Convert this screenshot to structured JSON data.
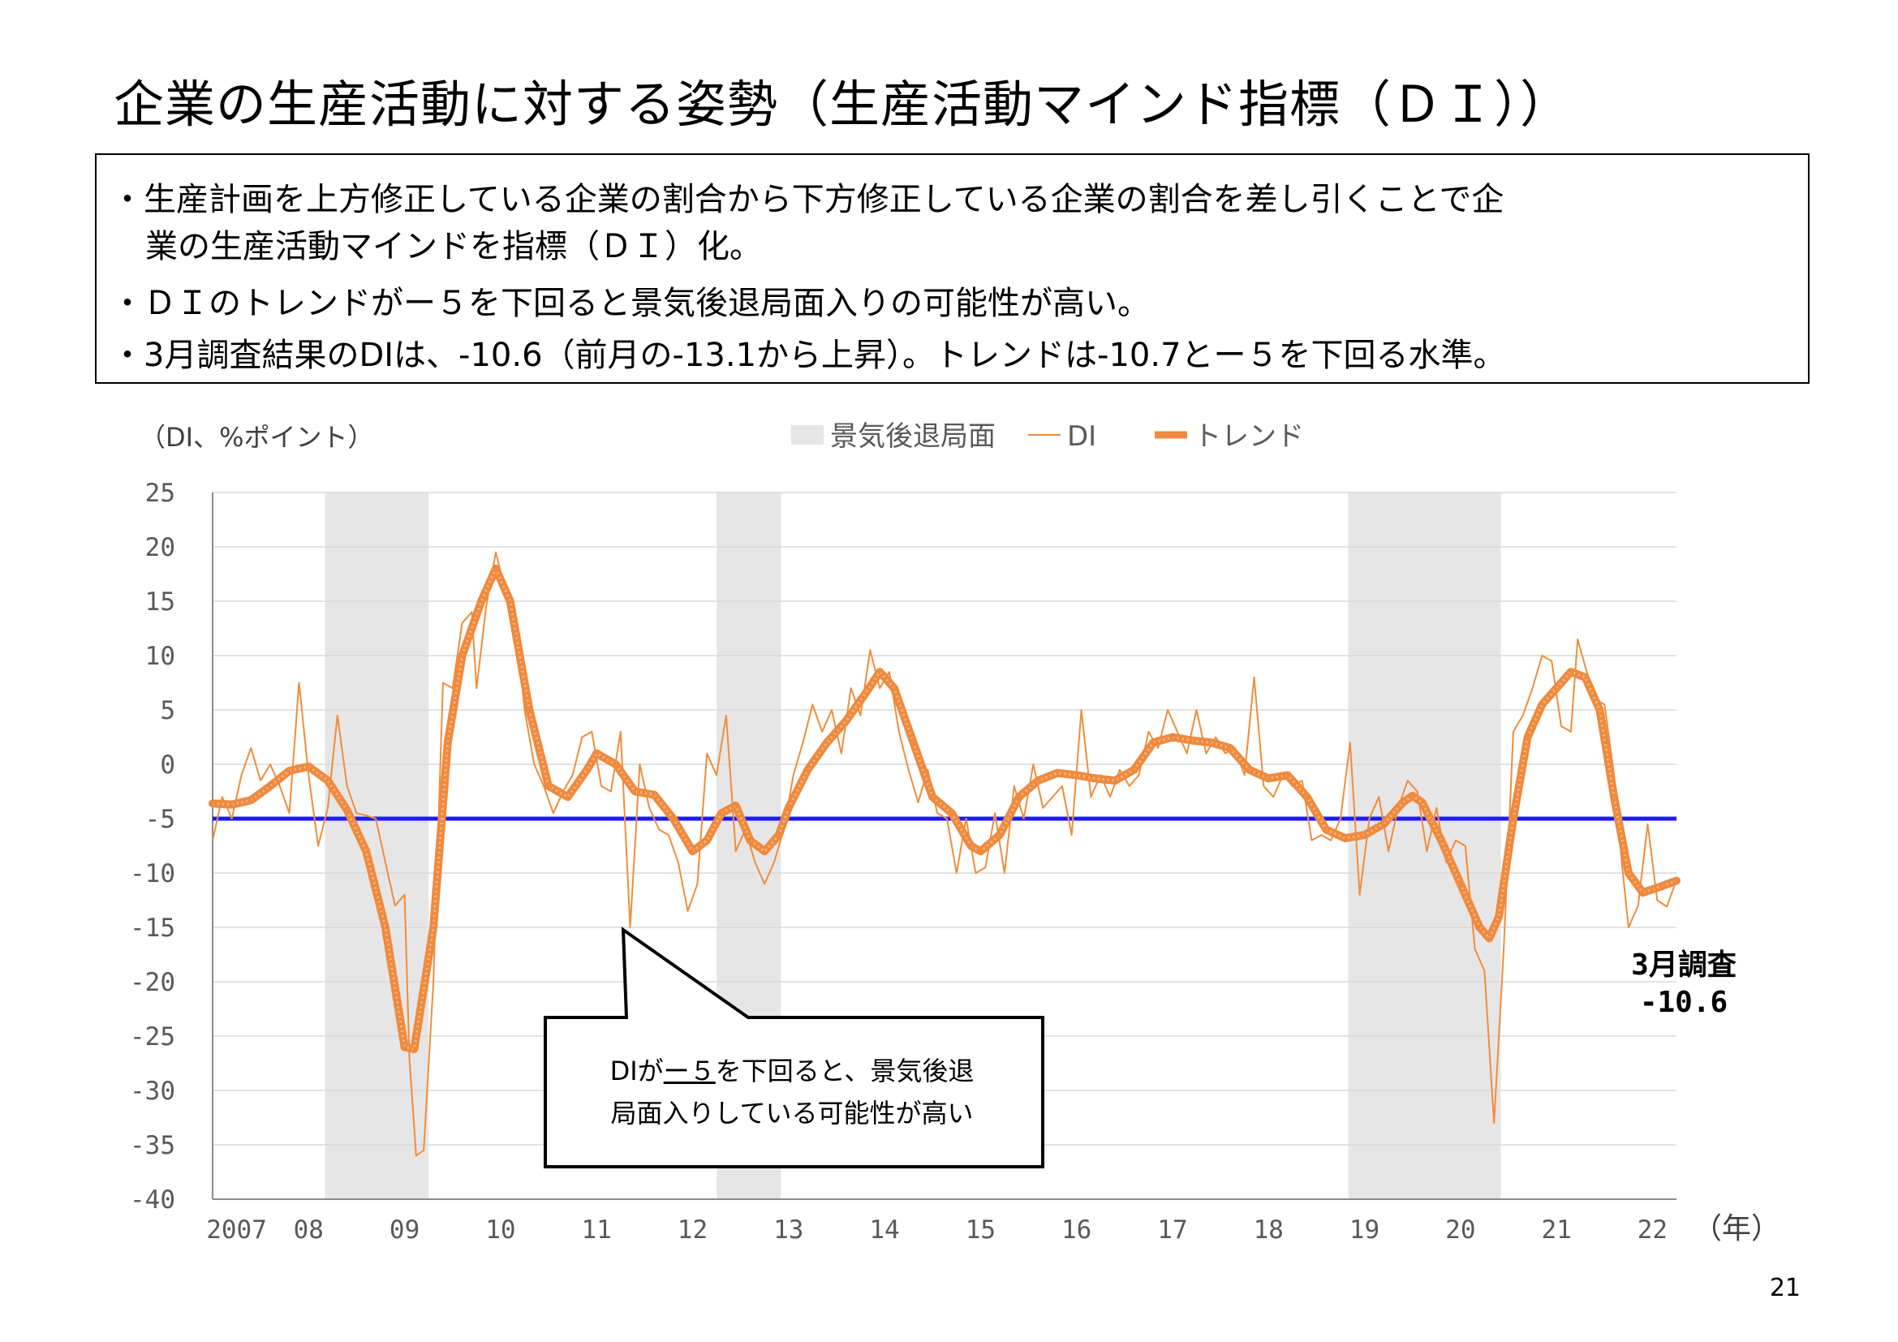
{
  "title": "企業の生産活動に対する姿勢（生産活動マインド指標（ＤＩ））",
  "description": {
    "bullets": [
      "・生産計画を上方修正している企業の割合から下方修正している企業の割合を差し引くことで企",
      "業の生産活動マインドを指標（ＤＩ）化。",
      "・ＤＩのトレンドがー５を下回ると景気後退局面入りの可能性が高い。",
      "・3月調査結果のDIは、-10.6（前月の-13.1から上昇）。トレンドは-10.7とー５を下回る水準。"
    ]
  },
  "callout": {
    "prefix": "DIが",
    "emph": "ー５",
    "suffix": "を下回ると、景気後退",
    "line2": "局面入りしている可能性が高い"
  },
  "annotation": {
    "line1": "3月調査",
    "line2": "-10.6"
  },
  "page_number": "21",
  "chart_data": {
    "type": "line",
    "ylabel": "（DI、%ポイント）",
    "xlabel": "（年）",
    "ylim": [
      -40,
      25
    ],
    "yticks": [
      25,
      20,
      15,
      10,
      5,
      0,
      -5,
      -10,
      -15,
      -20,
      -25,
      -30,
      -35,
      -40
    ],
    "xlim": [
      2007.0,
      2022.25
    ],
    "xticks": [
      {
        "label": "2007",
        "x": 2007.25
      },
      {
        "label": "08",
        "x": 2008.0
      },
      {
        "label": "09",
        "x": 2009.0
      },
      {
        "label": "10",
        "x": 2010.0
      },
      {
        "label": "11",
        "x": 2011.0
      },
      {
        "label": "12",
        "x": 2012.0
      },
      {
        "label": "13",
        "x": 2013.0
      },
      {
        "label": "14",
        "x": 2014.0
      },
      {
        "label": "15",
        "x": 2015.0
      },
      {
        "label": "16",
        "x": 2016.0
      },
      {
        "label": "17",
        "x": 2017.0
      },
      {
        "label": "18",
        "x": 2018.0
      },
      {
        "label": "19",
        "x": 2019.0
      },
      {
        "label": "20",
        "x": 2020.0
      },
      {
        "label": "21",
        "x": 2021.0
      },
      {
        "label": "22",
        "x": 2022.0
      }
    ],
    "grid": true,
    "legend": [
      {
        "name": "景気後退局面",
        "type": "band",
        "color": "#e6e6e6"
      },
      {
        "name": "DI",
        "type": "thin",
        "color": "#f28c3a"
      },
      {
        "name": "トレンド",
        "type": "thick",
        "color": "#ee8a3e"
      }
    ],
    "legend_position": "top",
    "recessions": [
      [
        2008.17,
        2009.25
      ],
      [
        2012.25,
        2012.92
      ],
      [
        2018.83,
        2020.42
      ]
    ],
    "threshold": {
      "value": -5,
      "color": "#1a1aff"
    },
    "colors": {
      "di": "#f28c3a",
      "trend": "#ee8a3e",
      "trend_highlight": "#f7b98a",
      "recession": "#e6e6e6",
      "threshold": "#1a1aff",
      "grid": "#d9d9d9"
    },
    "series": [
      {
        "name": "トレンド",
        "points": [
          [
            2007.0,
            -3.6
          ],
          [
            2007.2,
            -3.7
          ],
          [
            2007.4,
            -3.3
          ],
          [
            2007.6,
            -2.0
          ],
          [
            2007.8,
            -0.6
          ],
          [
            2008.0,
            -0.2
          ],
          [
            2008.2,
            -1.5
          ],
          [
            2008.4,
            -4.2
          ],
          [
            2008.6,
            -8.0
          ],
          [
            2008.8,
            -15.0
          ],
          [
            2009.0,
            -26.0
          ],
          [
            2009.1,
            -26.2
          ],
          [
            2009.3,
            -15.0
          ],
          [
            2009.45,
            2.0
          ],
          [
            2009.6,
            10.0
          ],
          [
            2009.8,
            15.0
          ],
          [
            2009.95,
            18.0
          ],
          [
            2010.1,
            15.0
          ],
          [
            2010.3,
            5.0
          ],
          [
            2010.5,
            -2.0
          ],
          [
            2010.7,
            -3.0
          ],
          [
            2010.9,
            -0.5
          ],
          [
            2011.0,
            1.0
          ],
          [
            2011.2,
            0.0
          ],
          [
            2011.4,
            -2.5
          ],
          [
            2011.6,
            -2.8
          ],
          [
            2011.8,
            -5.0
          ],
          [
            2012.0,
            -8.0
          ],
          [
            2012.15,
            -7.0
          ],
          [
            2012.3,
            -4.5
          ],
          [
            2012.45,
            -3.8
          ],
          [
            2012.6,
            -7.0
          ],
          [
            2012.75,
            -8.0
          ],
          [
            2012.9,
            -6.5
          ],
          [
            2013.0,
            -4.0
          ],
          [
            2013.2,
            -0.5
          ],
          [
            2013.4,
            2.0
          ],
          [
            2013.6,
            4.0
          ],
          [
            2013.8,
            6.5
          ],
          [
            2013.95,
            8.5
          ],
          [
            2014.1,
            7.0
          ],
          [
            2014.3,
            2.0
          ],
          [
            2014.5,
            -3.0
          ],
          [
            2014.7,
            -4.5
          ],
          [
            2014.9,
            -7.5
          ],
          [
            2015.0,
            -8.0
          ],
          [
            2015.2,
            -6.5
          ],
          [
            2015.4,
            -3.0
          ],
          [
            2015.6,
            -1.5
          ],
          [
            2015.8,
            -0.8
          ],
          [
            2016.0,
            -1.0
          ],
          [
            2016.2,
            -1.3
          ],
          [
            2016.4,
            -1.5
          ],
          [
            2016.6,
            -0.5
          ],
          [
            2016.8,
            2.0
          ],
          [
            2017.0,
            2.5
          ],
          [
            2017.2,
            2.2
          ],
          [
            2017.4,
            2.0
          ],
          [
            2017.6,
            1.5
          ],
          [
            2017.8,
            -0.5
          ],
          [
            2018.0,
            -1.3
          ],
          [
            2018.2,
            -1.0
          ],
          [
            2018.4,
            -3.0
          ],
          [
            2018.6,
            -6.0
          ],
          [
            2018.8,
            -6.8
          ],
          [
            2019.0,
            -6.5
          ],
          [
            2019.2,
            -5.5
          ],
          [
            2019.4,
            -3.5
          ],
          [
            2019.5,
            -2.9
          ],
          [
            2019.6,
            -3.5
          ],
          [
            2019.8,
            -7.0
          ],
          [
            2020.0,
            -11.0
          ],
          [
            2020.2,
            -15.0
          ],
          [
            2020.3,
            -16.0
          ],
          [
            2020.4,
            -14.0
          ],
          [
            2020.55,
            -5.0
          ],
          [
            2020.7,
            2.5
          ],
          [
            2020.85,
            5.5
          ],
          [
            2021.0,
            7.0
          ],
          [
            2021.15,
            8.5
          ],
          [
            2021.3,
            8.0
          ],
          [
            2021.45,
            5.0
          ],
          [
            2021.6,
            -3.0
          ],
          [
            2021.75,
            -10.0
          ],
          [
            2021.9,
            -11.8
          ],
          [
            2022.0,
            -11.5
          ],
          [
            2022.1,
            -11.2
          ],
          [
            2022.25,
            -10.7
          ]
        ]
      },
      {
        "name": "DI",
        "points": [
          [
            2007.0,
            -7.0
          ],
          [
            2007.1,
            -3.0
          ],
          [
            2007.2,
            -5.0
          ],
          [
            2007.3,
            -1.0
          ],
          [
            2007.4,
            1.5
          ],
          [
            2007.5,
            -1.5
          ],
          [
            2007.6,
            0.0
          ],
          [
            2007.7,
            -2.0
          ],
          [
            2007.8,
            -4.5
          ],
          [
            2007.9,
            7.5
          ],
          [
            2008.0,
            -1.0
          ],
          [
            2008.1,
            -7.5
          ],
          [
            2008.2,
            -4.0
          ],
          [
            2008.3,
            4.5
          ],
          [
            2008.4,
            -2.0
          ],
          [
            2008.5,
            -4.5
          ],
          [
            2008.6,
            -4.7
          ],
          [
            2008.7,
            -5.0
          ],
          [
            2008.8,
            -9.0
          ],
          [
            2008.9,
            -13.0
          ],
          [
            2009.0,
            -12.0
          ],
          [
            2009.05,
            -27.0
          ],
          [
            2009.12,
            -36.0
          ],
          [
            2009.2,
            -35.5
          ],
          [
            2009.3,
            -20.0
          ],
          [
            2009.4,
            7.5
          ],
          [
            2009.5,
            7.0
          ],
          [
            2009.6,
            13.0
          ],
          [
            2009.7,
            14.0
          ],
          [
            2009.75,
            7.0
          ],
          [
            2009.85,
            14.5
          ],
          [
            2009.95,
            19.5
          ],
          [
            2010.05,
            16.0
          ],
          [
            2010.15,
            14.0
          ],
          [
            2010.25,
            5.0
          ],
          [
            2010.35,
            0.0
          ],
          [
            2010.45,
            -2.0
          ],
          [
            2010.55,
            -4.5
          ],
          [
            2010.65,
            -2.5
          ],
          [
            2010.75,
            -1.0
          ],
          [
            2010.85,
            2.5
          ],
          [
            2010.95,
            3.0
          ],
          [
            2011.05,
            -2.0
          ],
          [
            2011.15,
            -2.5
          ],
          [
            2011.25,
            3.0
          ],
          [
            2011.35,
            -15.0
          ],
          [
            2011.45,
            0.0
          ],
          [
            2011.55,
            -4.0
          ],
          [
            2011.65,
            -6.0
          ],
          [
            2011.75,
            -6.5
          ],
          [
            2011.85,
            -9.0
          ],
          [
            2011.95,
            -13.5
          ],
          [
            2012.05,
            -11.0
          ],
          [
            2012.15,
            1.0
          ],
          [
            2012.25,
            -1.0
          ],
          [
            2012.35,
            4.5
          ],
          [
            2012.45,
            -8.0
          ],
          [
            2012.55,
            -6.0
          ],
          [
            2012.65,
            -9.0
          ],
          [
            2012.75,
            -11.0
          ],
          [
            2012.85,
            -9.0
          ],
          [
            2012.95,
            -6.0
          ],
          [
            2013.05,
            -1.0
          ],
          [
            2013.15,
            2.0
          ],
          [
            2013.25,
            5.5
          ],
          [
            2013.35,
            3.0
          ],
          [
            2013.45,
            5.0
          ],
          [
            2013.55,
            1.0
          ],
          [
            2013.65,
            7.0
          ],
          [
            2013.75,
            4.5
          ],
          [
            2013.85,
            10.5
          ],
          [
            2013.95,
            7.0
          ],
          [
            2014.05,
            8.5
          ],
          [
            2014.15,
            3.0
          ],
          [
            2014.25,
            -0.5
          ],
          [
            2014.35,
            -3.5
          ],
          [
            2014.45,
            -0.5
          ],
          [
            2014.55,
            -4.5
          ],
          [
            2014.65,
            -5.0
          ],
          [
            2014.75,
            -10.0
          ],
          [
            2014.85,
            -5.0
          ],
          [
            2014.95,
            -10.0
          ],
          [
            2015.05,
            -9.5
          ],
          [
            2015.15,
            -4.5
          ],
          [
            2015.25,
            -10.0
          ],
          [
            2015.35,
            -2.0
          ],
          [
            2015.45,
            -5.0
          ],
          [
            2015.55,
            0.0
          ],
          [
            2015.65,
            -4.0
          ],
          [
            2015.75,
            -3.0
          ],
          [
            2015.85,
            -2.0
          ],
          [
            2015.95,
            -6.5
          ],
          [
            2016.05,
            5.0
          ],
          [
            2016.15,
            -3.0
          ],
          [
            2016.25,
            -1.0
          ],
          [
            2016.35,
            -3.0
          ],
          [
            2016.45,
            -0.5
          ],
          [
            2016.55,
            -2.0
          ],
          [
            2016.65,
            -1.0
          ],
          [
            2016.75,
            3.0
          ],
          [
            2016.85,
            1.5
          ],
          [
            2016.95,
            5.0
          ],
          [
            2017.05,
            3.0
          ],
          [
            2017.15,
            1.0
          ],
          [
            2017.25,
            5.0
          ],
          [
            2017.35,
            1.0
          ],
          [
            2017.45,
            2.5
          ],
          [
            2017.55,
            1.0
          ],
          [
            2017.65,
            1.5
          ],
          [
            2017.75,
            -1.0
          ],
          [
            2017.85,
            8.0
          ],
          [
            2017.95,
            -2.0
          ],
          [
            2018.05,
            -3.0
          ],
          [
            2018.15,
            -1.0
          ],
          [
            2018.25,
            -2.0
          ],
          [
            2018.35,
            -1.5
          ],
          [
            2018.45,
            -7.0
          ],
          [
            2018.55,
            -6.5
          ],
          [
            2018.65,
            -7.0
          ],
          [
            2018.75,
            -5.0
          ],
          [
            2018.85,
            2.0
          ],
          [
            2018.95,
            -12.0
          ],
          [
            2019.05,
            -5.0
          ],
          [
            2019.15,
            -3.0
          ],
          [
            2019.25,
            -8.0
          ],
          [
            2019.35,
            -4.0
          ],
          [
            2019.45,
            -1.5
          ],
          [
            2019.55,
            -2.5
          ],
          [
            2019.65,
            -8.0
          ],
          [
            2019.75,
            -4.0
          ],
          [
            2019.85,
            -9.0
          ],
          [
            2019.95,
            -7.0
          ],
          [
            2020.05,
            -7.5
          ],
          [
            2020.15,
            -17.0
          ],
          [
            2020.25,
            -19.0
          ],
          [
            2020.35,
            -33.0
          ],
          [
            2020.45,
            -17.0
          ],
          [
            2020.55,
            3.0
          ],
          [
            2020.65,
            4.5
          ],
          [
            2020.75,
            7.0
          ],
          [
            2020.85,
            10.0
          ],
          [
            2020.95,
            9.5
          ],
          [
            2021.05,
            3.5
          ],
          [
            2021.15,
            3.0
          ],
          [
            2021.22,
            11.5
          ],
          [
            2021.3,
            9.0
          ],
          [
            2021.4,
            6.0
          ],
          [
            2021.5,
            5.5
          ],
          [
            2021.6,
            -1.0
          ],
          [
            2021.68,
            -9.0
          ],
          [
            2021.75,
            -15.0
          ],
          [
            2021.85,
            -13.0
          ],
          [
            2021.95,
            -5.5
          ],
          [
            2022.05,
            -12.5
          ],
          [
            2022.15,
            -13.1
          ],
          [
            2022.25,
            -10.6
          ]
        ]
      }
    ]
  }
}
